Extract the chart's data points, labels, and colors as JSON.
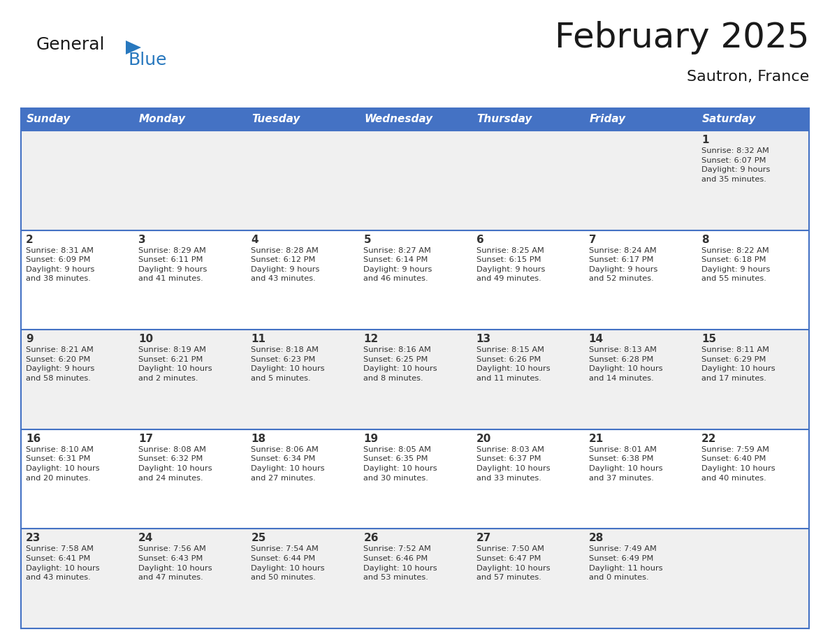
{
  "title": "February 2025",
  "subtitle": "Sautron, France",
  "header_bg": "#4472C4",
  "header_text_color": "#FFFFFF",
  "cell_bg_even": "#F0F0F0",
  "cell_bg_odd": "#FFFFFF",
  "row_separator_color": "#4472C4",
  "text_color": "#333333",
  "day_names": [
    "Sunday",
    "Monday",
    "Tuesday",
    "Wednesday",
    "Thursday",
    "Friday",
    "Saturday"
  ],
  "days": [
    {
      "day": 1,
      "col": 6,
      "row": 0,
      "sunrise": "8:32 AM",
      "sunset": "6:07 PM",
      "daylight": "9 hours\nand 35 minutes."
    },
    {
      "day": 2,
      "col": 0,
      "row": 1,
      "sunrise": "8:31 AM",
      "sunset": "6:09 PM",
      "daylight": "9 hours\nand 38 minutes."
    },
    {
      "day": 3,
      "col": 1,
      "row": 1,
      "sunrise": "8:29 AM",
      "sunset": "6:11 PM",
      "daylight": "9 hours\nand 41 minutes."
    },
    {
      "day": 4,
      "col": 2,
      "row": 1,
      "sunrise": "8:28 AM",
      "sunset": "6:12 PM",
      "daylight": "9 hours\nand 43 minutes."
    },
    {
      "day": 5,
      "col": 3,
      "row": 1,
      "sunrise": "8:27 AM",
      "sunset": "6:14 PM",
      "daylight": "9 hours\nand 46 minutes."
    },
    {
      "day": 6,
      "col": 4,
      "row": 1,
      "sunrise": "8:25 AM",
      "sunset": "6:15 PM",
      "daylight": "9 hours\nand 49 minutes."
    },
    {
      "day": 7,
      "col": 5,
      "row": 1,
      "sunrise": "8:24 AM",
      "sunset": "6:17 PM",
      "daylight": "9 hours\nand 52 minutes."
    },
    {
      "day": 8,
      "col": 6,
      "row": 1,
      "sunrise": "8:22 AM",
      "sunset": "6:18 PM",
      "daylight": "9 hours\nand 55 minutes."
    },
    {
      "day": 9,
      "col": 0,
      "row": 2,
      "sunrise": "8:21 AM",
      "sunset": "6:20 PM",
      "daylight": "9 hours\nand 58 minutes."
    },
    {
      "day": 10,
      "col": 1,
      "row": 2,
      "sunrise": "8:19 AM",
      "sunset": "6:21 PM",
      "daylight": "10 hours\nand 2 minutes."
    },
    {
      "day": 11,
      "col": 2,
      "row": 2,
      "sunrise": "8:18 AM",
      "sunset": "6:23 PM",
      "daylight": "10 hours\nand 5 minutes."
    },
    {
      "day": 12,
      "col": 3,
      "row": 2,
      "sunrise": "8:16 AM",
      "sunset": "6:25 PM",
      "daylight": "10 hours\nand 8 minutes."
    },
    {
      "day": 13,
      "col": 4,
      "row": 2,
      "sunrise": "8:15 AM",
      "sunset": "6:26 PM",
      "daylight": "10 hours\nand 11 minutes."
    },
    {
      "day": 14,
      "col": 5,
      "row": 2,
      "sunrise": "8:13 AM",
      "sunset": "6:28 PM",
      "daylight": "10 hours\nand 14 minutes."
    },
    {
      "day": 15,
      "col": 6,
      "row": 2,
      "sunrise": "8:11 AM",
      "sunset": "6:29 PM",
      "daylight": "10 hours\nand 17 minutes."
    },
    {
      "day": 16,
      "col": 0,
      "row": 3,
      "sunrise": "8:10 AM",
      "sunset": "6:31 PM",
      "daylight": "10 hours\nand 20 minutes."
    },
    {
      "day": 17,
      "col": 1,
      "row": 3,
      "sunrise": "8:08 AM",
      "sunset": "6:32 PM",
      "daylight": "10 hours\nand 24 minutes."
    },
    {
      "day": 18,
      "col": 2,
      "row": 3,
      "sunrise": "8:06 AM",
      "sunset": "6:34 PM",
      "daylight": "10 hours\nand 27 minutes."
    },
    {
      "day": 19,
      "col": 3,
      "row": 3,
      "sunrise": "8:05 AM",
      "sunset": "6:35 PM",
      "daylight": "10 hours\nand 30 minutes."
    },
    {
      "day": 20,
      "col": 4,
      "row": 3,
      "sunrise": "8:03 AM",
      "sunset": "6:37 PM",
      "daylight": "10 hours\nand 33 minutes."
    },
    {
      "day": 21,
      "col": 5,
      "row": 3,
      "sunrise": "8:01 AM",
      "sunset": "6:38 PM",
      "daylight": "10 hours\nand 37 minutes."
    },
    {
      "day": 22,
      "col": 6,
      "row": 3,
      "sunrise": "7:59 AM",
      "sunset": "6:40 PM",
      "daylight": "10 hours\nand 40 minutes."
    },
    {
      "day": 23,
      "col": 0,
      "row": 4,
      "sunrise": "7:58 AM",
      "sunset": "6:41 PM",
      "daylight": "10 hours\nand 43 minutes."
    },
    {
      "day": 24,
      "col": 1,
      "row": 4,
      "sunrise": "7:56 AM",
      "sunset": "6:43 PM",
      "daylight": "10 hours\nand 47 minutes."
    },
    {
      "day": 25,
      "col": 2,
      "row": 4,
      "sunrise": "7:54 AM",
      "sunset": "6:44 PM",
      "daylight": "10 hours\nand 50 minutes."
    },
    {
      "day": 26,
      "col": 3,
      "row": 4,
      "sunrise": "7:52 AM",
      "sunset": "6:46 PM",
      "daylight": "10 hours\nand 53 minutes."
    },
    {
      "day": 27,
      "col": 4,
      "row": 4,
      "sunrise": "7:50 AM",
      "sunset": "6:47 PM",
      "daylight": "10 hours\nand 57 minutes."
    },
    {
      "day": 28,
      "col": 5,
      "row": 4,
      "sunrise": "7:49 AM",
      "sunset": "6:49 PM",
      "daylight": "11 hours\nand 0 minutes."
    }
  ],
  "logo_general_color": "#1a1a1a",
  "logo_blue_color": "#2878BE",
  "logo_triangle_color": "#2878BE"
}
